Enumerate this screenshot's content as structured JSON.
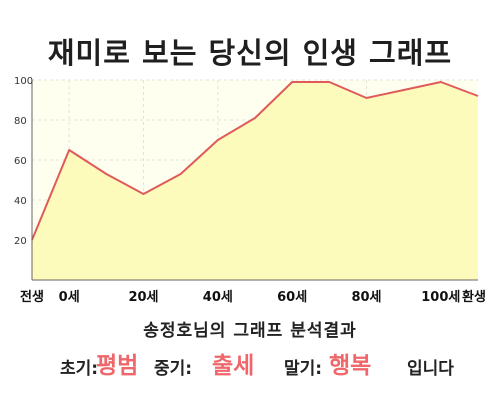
{
  "title": "재미로 보는 당신의 인생 그래프",
  "subtitle": "송정호님의 그래프 분석결과",
  "result": {
    "early_label": "초기:",
    "early_value": "평범",
    "mid_label": "중기:",
    "mid_value": "출세",
    "late_label": "말기:",
    "late_value": "행복",
    "ending": "입니다"
  },
  "colors": {
    "line": "#e05a5a",
    "area": "#fdfbbc",
    "plot_bg": "#fffff0",
    "highlight": "#f0676b"
  },
  "chart_data": {
    "type": "area",
    "x": [
      -10,
      0,
      10,
      20,
      30,
      40,
      50,
      60,
      70,
      80,
      90,
      100,
      110
    ],
    "values": [
      20,
      65,
      53,
      43,
      53,
      70,
      81,
      99,
      99,
      91,
      95,
      99,
      92
    ],
    "xlim": [
      -10,
      110
    ],
    "ylim": [
      0,
      100
    ],
    "yticks": [
      20,
      40,
      60,
      80,
      100
    ],
    "xtick_positions": [
      -10,
      0,
      20,
      40,
      60,
      80,
      100,
      110
    ],
    "xtick_labels": [
      "전생",
      "0세",
      "20세",
      "40세",
      "60세",
      "80세",
      "100세",
      "환생"
    ],
    "grid": true,
    "title": "",
    "xlabel": "",
    "ylabel": ""
  }
}
